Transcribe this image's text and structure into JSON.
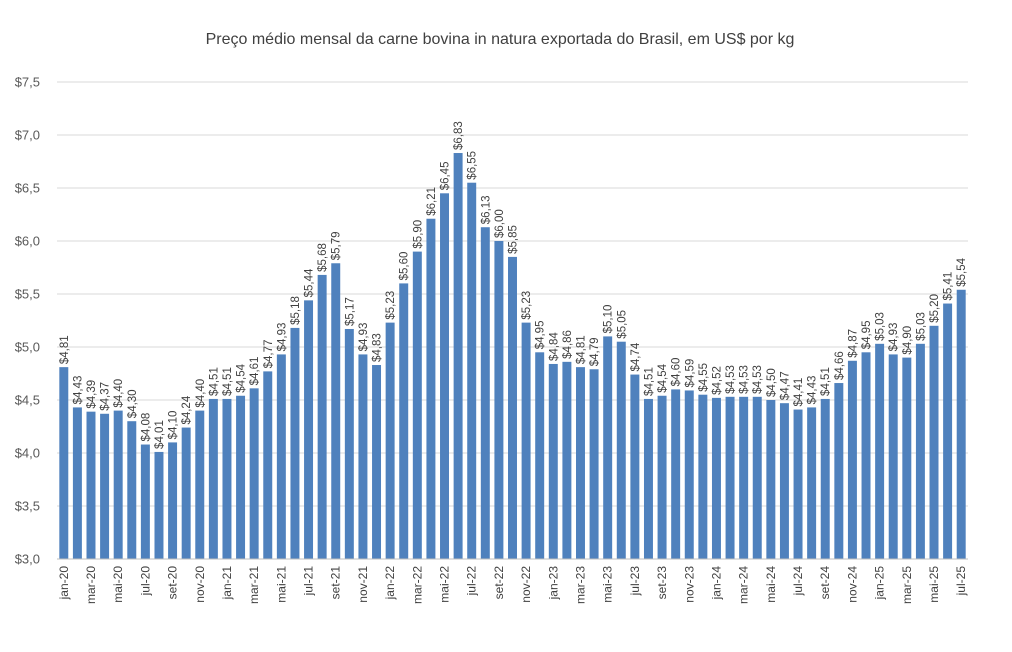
{
  "chart_data": {
    "type": "bar",
    "title": "Preço médio mensal da carne bovina in natura exportada do Brasil, em US$ por kg",
    "xlabel": "",
    "ylabel": "",
    "ylim": [
      3.0,
      7.5
    ],
    "ytick_step": 0.5,
    "yticks": [
      "$3,0",
      "$3,5",
      "$4,0",
      "$4,5",
      "$5,0",
      "$5,5",
      "$6,0",
      "$6,5",
      "$7,0",
      "$7,5"
    ],
    "bar_color": "#4f81bd",
    "grid": true,
    "categories": [
      "jan-20",
      "fev-20",
      "mar-20",
      "abr-20",
      "mai-20",
      "jun-20",
      "jul-20",
      "ago-20",
      "set-20",
      "out-20",
      "nov-20",
      "dez-20",
      "jan-21",
      "fev-21",
      "mar-21",
      "abr-21",
      "mai-21",
      "jun-21",
      "jul-21",
      "ago-21",
      "set-21",
      "out-21",
      "nov-21",
      "dez-21",
      "jan-22",
      "fev-22",
      "mar-22",
      "abr-22",
      "mai-22",
      "jun-22",
      "jul-22",
      "ago-22",
      "set-22",
      "out-22",
      "nov-22",
      "dez-22",
      "jan-23",
      "fev-23",
      "mar-23",
      "abr-23",
      "mai-23",
      "jun-23",
      "jul-23",
      "ago-23",
      "set-23",
      "out-23",
      "nov-23",
      "dez-23",
      "jan-24",
      "fev-24",
      "mar-24",
      "abr-24",
      "mai-24",
      "jun-24",
      "jul-24",
      "ago-24",
      "set-24",
      "out-24",
      "nov-24",
      "dez-24",
      "jan-25",
      "fev-25",
      "mar-25",
      "abr-25",
      "mai-25",
      "jun-25",
      "jul-25"
    ],
    "shown_tick_labels": [
      "jan-20",
      "mar-20",
      "mai-20",
      "jul-20",
      "set-20",
      "nov-20",
      "jan-21",
      "mar-21",
      "mai-21",
      "jul-21",
      "set-21",
      "nov-21",
      "jan-22",
      "mar-22",
      "mai-22",
      "jul-22",
      "set-22",
      "nov-22",
      "jan-23",
      "mar-23",
      "mai-23",
      "jul-23",
      "set-23",
      "nov-23",
      "jan-24",
      "mar-24",
      "mai-24",
      "jul-24",
      "set-24",
      "nov-24",
      "jan-25",
      "mar-25",
      "mai-25",
      "jul-25"
    ],
    "values": [
      4.81,
      4.43,
      4.39,
      4.37,
      4.4,
      4.3,
      4.08,
      4.01,
      4.1,
      4.24,
      4.4,
      4.51,
      4.51,
      4.54,
      4.61,
      4.77,
      4.93,
      5.18,
      5.44,
      5.68,
      5.79,
      5.17,
      4.93,
      4.83,
      5.23,
      5.6,
      5.9,
      6.21,
      6.45,
      6.83,
      6.55,
      6.13,
      6.0,
      5.85,
      5.23,
      4.95,
      4.84,
      4.86,
      4.81,
      4.79,
      5.1,
      5.05,
      4.74,
      4.51,
      4.54,
      4.6,
      4.59,
      4.55,
      4.52,
      4.53,
      4.53,
      4.53,
      4.5,
      4.47,
      4.41,
      4.43,
      4.51,
      4.66,
      4.87,
      4.95,
      5.03,
      4.93,
      4.9,
      5.03,
      5.2,
      5.41,
      5.54
    ],
    "data_labels": [
      "$4,81",
      "$4,43",
      "$4,39",
      "$4,37",
      "$4,40",
      "$4,30",
      "$4,08",
      "$4,01",
      "$4,10",
      "$4,24",
      "$4,40",
      "$4,51",
      "$4,51",
      "$4,54",
      "$4,61",
      "$4,77",
      "$4,93",
      "$5,18",
      "$5,44",
      "$5,68",
      "$5,79",
      "$5,17",
      "$4,93",
      "$4,83",
      "$5,23",
      "$5,60",
      "$5,90",
      "$6,21",
      "$6,45",
      "$6,83",
      "$6,55",
      "$6,13",
      "$6,00",
      "$5,85",
      "$5,23",
      "$4,95",
      "$4,84",
      "$4,86",
      "$4,81",
      "$4,79",
      "$5,10",
      "$5,05",
      "$4,74",
      "$4,51",
      "$4,54",
      "$4,60",
      "$4,59",
      "$4,55",
      "$4,52",
      "$4,53",
      "$4,53",
      "$4,53",
      "$4,50",
      "$4,47",
      "$4,41",
      "$4,43",
      "$4,51",
      "$4,66",
      "$4,87",
      "$4,95",
      "$5,03",
      "$4,93",
      "$4,90",
      "$5,03",
      "$5,20",
      "$5,41",
      "$5,54"
    ]
  }
}
